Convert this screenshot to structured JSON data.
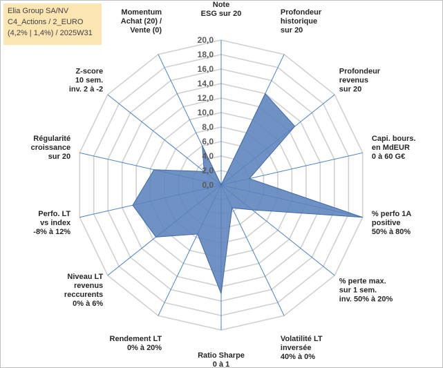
{
  "info_box": {
    "line1": "Elia Group SA/NV",
    "line2": "C4_Actions / 2_EURO",
    "line3": "(4,2% | 1,4%) / 2025W31"
  },
  "chart_data": {
    "type": "radar",
    "title": "",
    "rlim": [
      0,
      20
    ],
    "r_ticks": [
      "0,0",
      "2,0",
      "4,0",
      "6,0",
      "8,0",
      "10,0",
      "12,0",
      "14,0",
      "16,0",
      "18,0",
      "20,0"
    ],
    "grid": true,
    "series_color": "#5b82bc",
    "axes": [
      {
        "label": [
          "Note",
          "ESG sur 20"
        ],
        "value": 0
      },
      {
        "label": [
          "Profondeur",
          "historique",
          "sur 20"
        ],
        "value": 14
      },
      {
        "label": [
          "Profondeur",
          "revenus",
          "sur 20"
        ],
        "value": 13
      },
      {
        "label": [
          "Capi. bours.",
          "en MdEUR",
          "0 à 60 G€"
        ],
        "value": 4
      },
      {
        "label": [
          "% perfo 1A",
          "positive",
          "50% à 80%"
        ],
        "value": 20
      },
      {
        "label": [
          "% perte max.",
          "sur 1 sem.",
          "inv. 50% à 20%"
        ],
        "value": 5.5
      },
      {
        "label": [
          "Volatilité LT",
          "inversée",
          "40% à 0%"
        ],
        "value": 3.5
      },
      {
        "label": [
          "Ratio Sharpe",
          "0 à 1"
        ],
        "value": 15
      },
      {
        "label": [
          "Rendement LT",
          "0% à 20%"
        ],
        "value": 7.5
      },
      {
        "label": [
          "Niveau LT",
          "revenus",
          "reccurents",
          "0% à 6%"
        ],
        "value": 11.5
      },
      {
        "label": [
          "Perfo. LT",
          "vs index",
          "-8% à 12%"
        ],
        "value": 12.5
      },
      {
        "label": [
          "Régularité",
          "croissance",
          "sur 20"
        ],
        "value": 9.5
      },
      {
        "label": [
          "Z-score",
          "10 sem.",
          "inv. 2 à -2"
        ],
        "value": 3
      },
      {
        "label": [
          "Momentum",
          "Achat (20) /",
          "Vente (0)"
        ],
        "value": 6
      }
    ]
  }
}
